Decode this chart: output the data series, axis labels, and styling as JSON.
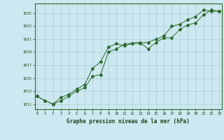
{
  "line1_x": [
    0,
    1,
    2,
    3,
    4,
    5,
    6,
    7,
    8,
    9,
    10,
    11,
    12,
    13,
    14,
    15,
    16,
    17,
    18,
    19,
    20,
    21,
    22,
    23
  ],
  "line1_y": [
    1012.2,
    1011.5,
    1011.0,
    1011.5,
    1012.2,
    1013.0,
    1013.5,
    1015.3,
    1015.5,
    1019.0,
    1019.5,
    1020.2,
    1020.4,
    1020.5,
    1019.5,
    1020.5,
    1021.2,
    1021.2,
    1022.5,
    1023.2,
    1023.5,
    1024.8,
    1025.5,
    1025.3
  ],
  "line2_x": [
    0,
    1,
    2,
    3,
    4,
    5,
    6,
    7,
    8,
    9,
    10,
    11,
    12,
    13,
    14,
    15,
    16,
    17,
    18,
    19,
    20,
    21,
    22,
    23
  ],
  "line2_y": [
    1012.2,
    1011.5,
    1011.0,
    1012.0,
    1012.5,
    1013.3,
    1014.0,
    1016.5,
    1017.5,
    1019.8,
    1020.3,
    1020.0,
    1020.3,
    1020.4,
    1020.5,
    1021.0,
    1021.5,
    1023.0,
    1023.3,
    1024.0,
    1024.5,
    1025.5,
    1025.3,
    1025.3
  ],
  "line_color": "#2d6a2d",
  "marker": "D",
  "marker_size": 2.0,
  "bg_color": "#cce8f0",
  "grid_color": "#aaccd8",
  "xlabel": "Graphe pression niveau de la mer (hPa)",
  "yticks": [
    1011,
    1013,
    1015,
    1017,
    1019,
    1021,
    1023,
    1025
  ],
  "xticks": [
    0,
    1,
    2,
    3,
    4,
    5,
    6,
    7,
    8,
    9,
    10,
    11,
    12,
    13,
    14,
    15,
    16,
    17,
    18,
    19,
    20,
    21,
    22,
    23
  ],
  "xlim": [
    -0.3,
    23.3
  ],
  "ylim": [
    1010.2,
    1026.5
  ]
}
